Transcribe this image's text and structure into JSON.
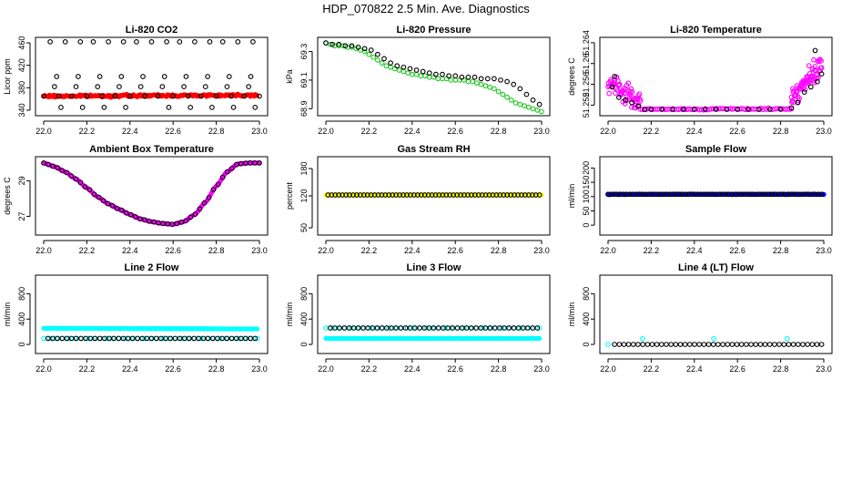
{
  "title": "HDP_070822  2.5 Min. Ave. Diagnostics",
  "colors": {
    "red": "#ff0000",
    "green": "#1ec81e",
    "magenta": "#ff00ff",
    "yellow": "#ffff00",
    "blue": "#0000ff",
    "cyan": "#00ffff",
    "black": "#000000"
  },
  "chart_data": [
    {
      "id": "co2",
      "type": "scatter",
      "title": "Li-820 CO2",
      "ylabel": "Licor ppm",
      "xlim": [
        22.0,
        23.0
      ],
      "ylim": [
        335,
        465
      ],
      "xticks": [
        "22.0",
        "22.2",
        "22.4",
        "22.6",
        "22.8",
        "23.0"
      ],
      "yticks": [
        "340",
        "380",
        "420",
        "460"
      ],
      "series": [
        {
          "name": "co2_dense",
          "color": "red",
          "marker": "dot",
          "gen": "dense",
          "x0": 22.0,
          "x1": 22.99,
          "y0": 365,
          "y1": 367,
          "noise": 1.5
        },
        {
          "name": "co2_black",
          "color": "black",
          "marker": "ring",
          "x": [
            22.0,
            22.03,
            22.07,
            22.1,
            22.13,
            22.17,
            22.2,
            22.23,
            22.27,
            22.3,
            22.33,
            22.37,
            22.4,
            22.43,
            22.47,
            22.5,
            22.53,
            22.57,
            22.6,
            22.63,
            22.67,
            22.7,
            22.73,
            22.77,
            22.8,
            22.83,
            22.87,
            22.9,
            22.93,
            22.97,
            23.0,
            22.06,
            22.16,
            22.26,
            22.36,
            22.46,
            22.56,
            22.66,
            22.76,
            22.86,
            22.96,
            22.08,
            22.18,
            22.28,
            22.38,
            22.58,
            22.68,
            22.78,
            22.88,
            22.98,
            22.05,
            22.15,
            22.25,
            22.35,
            22.45,
            22.55,
            22.65,
            22.75,
            22.85,
            22.95
          ],
          "y": [
            365,
            462,
            365,
            462,
            365,
            462,
            365,
            462,
            365,
            462,
            365,
            462,
            365,
            462,
            365,
            462,
            365,
            462,
            365,
            462,
            365,
            462,
            365,
            462,
            365,
            462,
            365,
            462,
            365,
            462,
            365,
            400,
            400,
            400,
            400,
            400,
            400,
            400,
            400,
            400,
            400,
            345,
            345,
            345,
            345,
            345,
            345,
            345,
            345,
            345,
            382,
            382,
            382,
            382,
            382,
            382,
            382,
            382,
            382,
            382
          ]
        }
      ]
    },
    {
      "id": "pressure",
      "type": "scatter",
      "title": "Li-820 Pressure",
      "ylabel": "kPa",
      "xlim": [
        22.0,
        23.0
      ],
      "ylim": [
        68.87,
        69.38
      ],
      "xticks": [
        "22.0",
        "22.2",
        "22.4",
        "22.6",
        "22.8",
        "23.0"
      ],
      "yticks": [
        "68.9",
        "69.1",
        "69.3"
      ],
      "series": [
        {
          "name": "pressure_green",
          "color": "green",
          "marker": "ring",
          "x": [
            22.0,
            22.02,
            22.04,
            22.06,
            22.08,
            22.1,
            22.12,
            22.14,
            22.16,
            22.18,
            22.2,
            22.22,
            22.24,
            22.26,
            22.28,
            22.3,
            22.32,
            22.34,
            22.36,
            22.38,
            22.4,
            22.42,
            22.44,
            22.46,
            22.48,
            22.5,
            22.52,
            22.54,
            22.56,
            22.58,
            22.6,
            22.62,
            22.64,
            22.66,
            22.68,
            22.7,
            22.72,
            22.74,
            22.76,
            22.78,
            22.8,
            22.82,
            22.84,
            22.86,
            22.88,
            22.9,
            22.92,
            22.94,
            22.96,
            22.98,
            23.0
          ],
          "y": [
            69.36,
            69.35,
            69.34,
            69.34,
            69.34,
            69.33,
            69.33,
            69.32,
            69.31,
            69.3,
            69.28,
            69.26,
            69.24,
            69.22,
            69.2,
            69.19,
            69.18,
            69.17,
            69.16,
            69.15,
            69.14,
            69.14,
            69.13,
            69.13,
            69.12,
            69.12,
            69.11,
            69.11,
            69.11,
            69.1,
            69.1,
            69.1,
            69.1,
            69.09,
            69.09,
            69.08,
            69.07,
            69.06,
            69.05,
            69.04,
            69.02,
            69.0,
            68.98,
            68.96,
            68.94,
            68.93,
            68.92,
            68.91,
            68.9,
            68.89,
            68.88
          ]
        },
        {
          "name": "pressure_black",
          "color": "black",
          "marker": "ring",
          "x": [
            22.0,
            22.03,
            22.06,
            22.09,
            22.12,
            22.15,
            22.18,
            22.21,
            22.24,
            22.27,
            22.3,
            22.33,
            22.36,
            22.39,
            22.42,
            22.45,
            22.48,
            22.51,
            22.54,
            22.57,
            22.6,
            22.63,
            22.66,
            22.69,
            22.72,
            22.75,
            22.78,
            22.81,
            22.84,
            22.87,
            22.9,
            22.93,
            22.96,
            22.99
          ],
          "y": [
            69.36,
            69.35,
            69.35,
            69.34,
            69.34,
            69.33,
            69.32,
            69.31,
            69.28,
            69.25,
            69.22,
            69.2,
            69.19,
            69.18,
            69.17,
            69.16,
            69.15,
            69.14,
            69.14,
            69.13,
            69.13,
            69.12,
            69.12,
            69.12,
            69.11,
            69.11,
            69.11,
            69.1,
            69.09,
            69.07,
            69.04,
            69.0,
            68.96,
            68.93
          ]
        }
      ]
    },
    {
      "id": "temperature",
      "type": "scatter",
      "title": "Li-820 Temperature",
      "ylabel": "degrees C",
      "xlim": [
        22.0,
        23.0
      ],
      "ylim": [
        51.2505,
        51.2645
      ],
      "xticks": [
        "22.0",
        "22.2",
        "22.4",
        "22.6",
        "22.8",
        "23.0"
      ],
      "yticks": [
        "51.252",
        "51.256",
        "51.26",
        "51.264"
      ],
      "series": [
        {
          "name": "temp_magenta_a",
          "color": "magenta",
          "marker": "ring",
          "gen": "noisy",
          "n": 60,
          "x0": 22.0,
          "x1": 22.15,
          "y0": 51.2565,
          "y1": 51.2525,
          "noise": 0.0015
        },
        {
          "name": "temp_magenta_flat",
          "color": "magenta",
          "marker": "ring",
          "gen": "noisy",
          "n": 80,
          "x0": 22.15,
          "x1": 22.85,
          "y0": 51.2512,
          "y1": 51.2513,
          "noise": 0.0001
        },
        {
          "name": "temp_magenta_b",
          "color": "magenta",
          "marker": "ring",
          "gen": "noisy",
          "n": 70,
          "x0": 22.85,
          "x1": 22.99,
          "y0": 51.2535,
          "y1": 51.2595,
          "noise": 0.0015
        },
        {
          "name": "temp_black",
          "color": "black",
          "marker": "ring",
          "x": [
            22.02,
            22.05,
            22.08,
            22.11,
            22.14,
            22.17,
            22.2,
            22.25,
            22.3,
            22.35,
            22.4,
            22.45,
            22.5,
            22.55,
            22.6,
            22.65,
            22.7,
            22.75,
            22.8,
            22.85,
            22.88,
            22.91,
            22.94,
            22.97,
            22.99,
            22.96,
            22.03
          ],
          "y": [
            51.2555,
            51.2535,
            51.253,
            51.2525,
            51.2518,
            51.2512,
            51.2512,
            51.2512,
            51.2512,
            51.2512,
            51.2512,
            51.2512,
            51.2512,
            51.2512,
            51.2512,
            51.2512,
            51.2512,
            51.2512,
            51.2512,
            51.2515,
            51.2525,
            51.2545,
            51.2555,
            51.2565,
            51.258,
            51.2625,
            51.2575
          ]
        }
      ]
    },
    {
      "id": "ambient",
      "type": "scatter",
      "title": "Ambient Box Temperature",
      "ylabel": "degrees C",
      "xlim": [
        22.0,
        23.0
      ],
      "ylim": [
        26.1,
        30.2
      ],
      "xticks": [
        "22.0",
        "22.2",
        "22.4",
        "22.6",
        "22.8",
        "23.0"
      ],
      "yticks": [
        "27",
        "29"
      ],
      "series": [
        {
          "name": "ambient_magenta",
          "color": "magenta",
          "marker": "dot",
          "gen": "interp",
          "n": 240,
          "kx": [
            22.0,
            22.05,
            22.1,
            22.15,
            22.2,
            22.25,
            22.3,
            22.35,
            22.4,
            22.45,
            22.5,
            22.55,
            22.6,
            22.65,
            22.7,
            22.75,
            22.8,
            22.85,
            22.9,
            22.95,
            23.0
          ],
          "ky": [
            30.0,
            29.8,
            29.5,
            29.1,
            28.6,
            28.1,
            27.7,
            27.4,
            27.1,
            26.85,
            26.7,
            26.6,
            26.55,
            26.7,
            27.1,
            27.8,
            28.7,
            29.5,
            29.95,
            30.0,
            30.0
          ]
        },
        {
          "name": "ambient_black",
          "color": "black",
          "marker": "ring",
          "gen": "interp",
          "n": 48,
          "kx": [
            22.0,
            22.05,
            22.1,
            22.15,
            22.2,
            22.25,
            22.3,
            22.35,
            22.4,
            22.45,
            22.5,
            22.55,
            22.6,
            22.65,
            22.7,
            22.75,
            22.8,
            22.85,
            22.9,
            22.95,
            23.0
          ],
          "ky": [
            30.0,
            29.8,
            29.5,
            29.1,
            28.6,
            28.1,
            27.7,
            27.4,
            27.1,
            26.85,
            26.7,
            26.6,
            26.55,
            26.7,
            27.1,
            27.8,
            28.7,
            29.5,
            29.95,
            30.0,
            30.0
          ]
        }
      ]
    },
    {
      "id": "rh",
      "type": "scatter",
      "title": "Gas Stream RH",
      "ylabel": "percent",
      "xlim": [
        22.0,
        23.0
      ],
      "ylim": [
        40,
        200
      ],
      "xticks": [
        "22.0",
        "22.2",
        "22.4",
        "22.6",
        "22.8",
        "23.0"
      ],
      "yticks": [
        "50",
        "120",
        "180"
      ],
      "series": [
        {
          "name": "rh_yellow",
          "color": "yellow",
          "marker": "dot",
          "gen": "dense",
          "x0": 22.0,
          "x1": 23.0,
          "y0": 122,
          "y1": 122,
          "noise": 0.3
        },
        {
          "name": "rh_black",
          "color": "black",
          "marker": "ring",
          "gen": "range",
          "n": 60,
          "x0": 22.01,
          "x1": 22.99,
          "y0": 122,
          "y1": 122
        }
      ]
    },
    {
      "id": "sample",
      "type": "scatter",
      "title": "Sample Flow",
      "ylabel": "ml/min",
      "xlim": [
        22.0,
        23.0
      ],
      "ylim": [
        -25,
        230
      ],
      "xticks": [
        "22.0",
        "22.2",
        "22.4",
        "22.6",
        "22.8",
        "23.0"
      ],
      "yticks": [
        "0",
        "50",
        "100",
        "150",
        "200"
      ],
      "series": [
        {
          "name": "sample_blue",
          "color": "blue",
          "marker": "dot",
          "gen": "dense",
          "x0": 22.0,
          "x1": 23.0,
          "y0": 108,
          "y1": 108,
          "noise": 0.8
        },
        {
          "name": "sample_black",
          "color": "black",
          "marker": "ring",
          "gen": "range",
          "n": 70,
          "x0": 22.0,
          "x1": 22.99,
          "y0": 108,
          "y1": 108
        }
      ]
    },
    {
      "id": "line2",
      "type": "scatter",
      "title": "Line 2 Flow",
      "ylabel": "ml/min",
      "xlim": [
        22.0,
        23.0
      ],
      "ylim": [
        -100,
        1050
      ],
      "xticks": [
        "22.0",
        "22.2",
        "22.4",
        "22.6",
        "22.8",
        "23.0"
      ],
      "yticks": [
        "0",
        "400",
        "800"
      ],
      "series": [
        {
          "name": "line2_cyan_high",
          "color": "cyan",
          "marker": "dot",
          "gen": "dense",
          "x0": 22.0,
          "x1": 22.99,
          "y0": 255,
          "y1": 245,
          "noise": 2
        },
        {
          "name": "line2_cyan_low",
          "color": "cyan",
          "marker": "ring",
          "gen": "range",
          "n": 35,
          "x0": 22.0,
          "x1": 22.99,
          "y0": 95,
          "y1": 95
        },
        {
          "name": "line2_black",
          "color": "black",
          "marker": "ring",
          "gen": "range",
          "n": 45,
          "x0": 22.02,
          "x1": 22.98,
          "y0": 95,
          "y1": 95
        }
      ]
    },
    {
      "id": "line3",
      "type": "scatter",
      "title": "Line 3 Flow",
      "ylabel": "ml/min",
      "xlim": [
        22.0,
        23.0
      ],
      "ylim": [
        -100,
        1050
      ],
      "xticks": [
        "22.0",
        "22.2",
        "22.4",
        "22.6",
        "22.8",
        "23.0"
      ],
      "yticks": [
        "0",
        "400",
        "800"
      ],
      "series": [
        {
          "name": "line3_cyan_low",
          "color": "cyan",
          "marker": "dot",
          "gen": "dense",
          "x0": 22.0,
          "x1": 22.99,
          "y0": 95,
          "y1": 95,
          "noise": 2
        },
        {
          "name": "line3_cyan_high",
          "color": "cyan",
          "marker": "ring",
          "gen": "range",
          "n": 35,
          "x0": 22.0,
          "x1": 22.99,
          "y0": 260,
          "y1": 260
        },
        {
          "name": "line3_black",
          "color": "black",
          "marker": "ring",
          "gen": "range",
          "n": 45,
          "x0": 22.02,
          "x1": 22.98,
          "y0": 260,
          "y1": 260
        }
      ]
    },
    {
      "id": "line4",
      "type": "scatter",
      "title": "Line 4 (LT) Flow",
      "ylabel": "ml/min",
      "xlim": [
        22.0,
        23.0
      ],
      "ylim": [
        -100,
        1050
      ],
      "xticks": [
        "22.0",
        "22.2",
        "22.4",
        "22.6",
        "22.8",
        "23.0"
      ],
      "yticks": [
        "0",
        "400",
        "800"
      ],
      "series": [
        {
          "name": "line4_cyan",
          "color": "cyan",
          "marker": "ring",
          "x": [
            22.0,
            22.16,
            22.49,
            22.83
          ],
          "y": [
            0,
            90,
            90,
            90
          ]
        },
        {
          "name": "line4_black",
          "color": "black",
          "marker": "ring",
          "gen": "range",
          "n": 45,
          "x0": 22.03,
          "x1": 22.99,
          "y0": 0,
          "y1": 0
        }
      ]
    }
  ]
}
